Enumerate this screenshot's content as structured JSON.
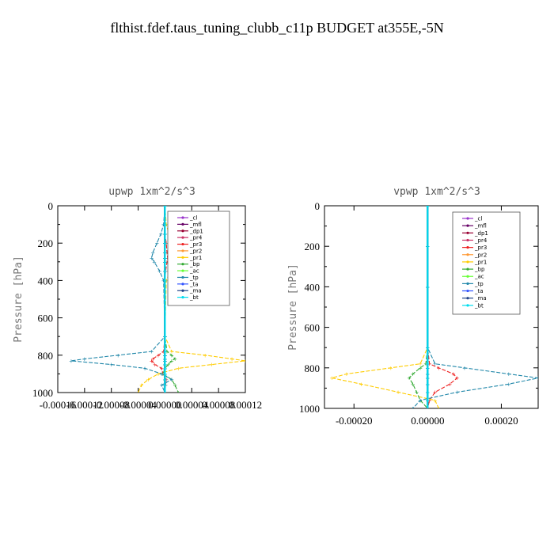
{
  "suptitle": "flthist.fdef.taus_tuning_clubb_c11p  BUDGET at355E,-5N",
  "chart_data": [
    {
      "type": "line",
      "title": "upwp   1xm^2/s^3",
      "ylabel": "Pressure [hPa]",
      "xlim": [
        -0.00016,
        0.00012
      ],
      "ylim": [
        1000,
        0
      ],
      "x_ticks": [
        "-0.00016",
        "-0.00012",
        "-0.00008",
        "-0.00004",
        "0.00000",
        "0.00004",
        "0.00008",
        "0.00012"
      ],
      "y_ticks": [
        "0",
        "200",
        "400",
        "600",
        "800",
        "1000"
      ],
      "legend_position": "top-right",
      "pressure": [
        0,
        100,
        150,
        200,
        250,
        280,
        300,
        350,
        400,
        700,
        780,
        800,
        820,
        830,
        850,
        870,
        900,
        930,
        960,
        1000
      ],
      "series": [
        {
          "name": "_cl",
          "color": "#9933cc",
          "x": [
            0,
            0,
            0,
            0,
            0,
            0,
            0,
            0,
            0,
            0,
            0,
            0,
            0,
            0,
            0,
            0,
            0,
            0,
            0,
            0
          ]
        },
        {
          "name": "_mfl",
          "color": "#660066",
          "x": [
            0,
            0,
            0,
            0,
            0,
            0,
            0,
            0,
            0,
            0,
            0,
            0,
            0,
            0,
            0,
            0,
            0,
            0,
            0,
            0
          ]
        },
        {
          "name": "_dp1",
          "color": "#990033",
          "x": [
            0,
            0,
            0,
            0,
            0,
            0,
            0,
            0,
            0,
            0,
            0,
            0,
            0,
            0,
            0,
            0,
            0,
            0,
            0,
            0
          ]
        },
        {
          "name": "_pr4",
          "color": "#cc3366",
          "x": [
            0,
            0,
            0,
            0,
            0,
            0,
            0,
            0,
            0,
            0,
            0,
            0,
            0,
            0,
            0,
            0,
            0,
            0,
            0,
            0
          ]
        },
        {
          "name": "_pr3",
          "color": "#ee2222",
          "x": [
            0,
            0,
            0,
            2e-06,
            3e-06,
            4e-06,
            3e-06,
            1e-06,
            0,
            0,
            -2e-06,
            -1e-05,
            -1.8e-05,
            -2e-05,
            -1.5e-05,
            -5e-06,
            -3e-06,
            2e-06,
            1e-06,
            0
          ]
        },
        {
          "name": "_pr2",
          "color": "#ff9933",
          "x": [
            0,
            0,
            0,
            0,
            0,
            0,
            0,
            0,
            0,
            0,
            0,
            0,
            0,
            0,
            0,
            0,
            0,
            0,
            0,
            0
          ]
        },
        {
          "name": "_pr1",
          "color": "#ffcc00",
          "x": [
            0,
            2e-06,
            6e-06,
            1.2e-05,
            1.6e-05,
            1.8e-05,
            1.6e-05,
            8e-06,
            2e-06,
            0,
            1e-05,
            6e-05,
            0.0001,
            0.00012,
            7e-05,
            2e-05,
            -1e-05,
            -2.5e-05,
            -3.5e-05,
            -4e-05
          ]
        },
        {
          "name": "_bp",
          "color": "#33aa33",
          "x": [
            0,
            0,
            0,
            0,
            0,
            0,
            0,
            0,
            0,
            0,
            3e-06,
            1e-05,
            1.5e-05,
            1e-05,
            5e-06,
            0,
            -3e-06,
            1e-05,
            1.5e-05,
            2e-05
          ]
        },
        {
          "name": "_ac",
          "color": "#66ff33",
          "x": [
            0,
            0,
            0,
            0,
            0,
            0,
            0,
            0,
            0,
            0,
            0,
            0,
            0,
            0,
            0,
            0,
            0,
            0,
            0,
            0
          ]
        },
        {
          "name": "_tp",
          "color": "#2288aa",
          "x": [
            0,
            -2e-06,
            -6e-06,
            -1.2e-05,
            -1.8e-05,
            -2e-05,
            -1.6e-05,
            -8e-06,
            -2e-06,
            0,
            -2e-05,
            -7e-05,
            -0.00012,
            -0.00014,
            -8e-05,
            -3e-05,
            -5e-06,
            1e-05,
            -5e-06,
            0
          ]
        },
        {
          "name": "_ta",
          "color": "#3355ff",
          "x": [
            0,
            0,
            0,
            0,
            0,
            0,
            0,
            0,
            0,
            0,
            0,
            0,
            0,
            0,
            0,
            0,
            0,
            0,
            0,
            0
          ]
        },
        {
          "name": "_ma",
          "color": "#224488",
          "x": [
            0,
            0,
            0,
            0,
            0,
            0,
            0,
            0,
            0,
            0,
            0,
            0,
            0,
            0,
            0,
            0,
            0,
            0,
            0,
            0
          ]
        },
        {
          "name": "_bt",
          "color": "#00ddee",
          "x": [
            0,
            0,
            0,
            0,
            0,
            0,
            0,
            0,
            0,
            0,
            0,
            0,
            0,
            0,
            0,
            0,
            0,
            0,
            0,
            0
          ]
        }
      ]
    },
    {
      "type": "line",
      "title": "vpwp   1xm^2/s^3",
      "ylabel": "Pressure [hPa]",
      "xlim": [
        -0.00028,
        0.0003
      ],
      "ylim": [
        1000,
        0
      ],
      "x_ticks": [
        "-0.00020",
        "0.00000",
        "0.00020"
      ],
      "x_tick_values": [
        -0.0002,
        0,
        0.0002
      ],
      "y_ticks": [
        "0",
        "200",
        "400",
        "600",
        "800",
        "1000"
      ],
      "legend_position": "top-right",
      "pressure": [
        0,
        200,
        400,
        700,
        780,
        800,
        830,
        850,
        880,
        920,
        960,
        1000
      ],
      "series": [
        {
          "name": "_cl",
          "color": "#9933cc",
          "x": [
            0,
            0,
            0,
            0,
            0,
            0,
            0,
            0,
            0,
            0,
            0,
            0
          ]
        },
        {
          "name": "_mfl",
          "color": "#660066",
          "x": [
            0,
            0,
            0,
            0,
            0,
            0,
            0,
            0,
            0,
            0,
            0,
            0
          ]
        },
        {
          "name": "_dp1",
          "color": "#990033",
          "x": [
            0,
            0,
            0,
            0,
            0,
            0,
            0,
            0,
            0,
            0,
            0,
            0
          ]
        },
        {
          "name": "_pr4",
          "color": "#cc3366",
          "x": [
            0,
            0,
            0,
            0,
            0,
            0,
            0,
            0,
            0,
            0,
            0,
            0
          ]
        },
        {
          "name": "_pr3",
          "color": "#ee2222",
          "x": [
            0,
            0,
            0,
            0,
            5e-06,
            3e-05,
            7e-05,
            8e-05,
            6e-05,
            2e-05,
            5e-06,
            0
          ]
        },
        {
          "name": "_pr2",
          "color": "#ff9933",
          "x": [
            0,
            0,
            0,
            0,
            0,
            0,
            0,
            0,
            0,
            0,
            0,
            0
          ]
        },
        {
          "name": "_pr1",
          "color": "#ffcc00",
          "x": [
            0,
            0,
            0,
            0,
            -2e-05,
            -0.0001,
            -0.00022,
            -0.00026,
            -0.00018,
            -8e-05,
            2e-05,
            3e-05
          ]
        },
        {
          "name": "_bp",
          "color": "#33aa33",
          "x": [
            0,
            0,
            0,
            0,
            -5e-06,
            -2e-05,
            -4e-05,
            -5e-05,
            -4e-05,
            -3e-05,
            -2e-05,
            0
          ]
        },
        {
          "name": "_ac",
          "color": "#66ff33",
          "x": [
            0,
            0,
            0,
            0,
            0,
            0,
            0,
            0,
            0,
            0,
            0,
            0
          ]
        },
        {
          "name": "_tp",
          "color": "#2288aa",
          "x": [
            0,
            0,
            0,
            0,
            2e-05,
            0.0001,
            0.00022,
            0.0003,
            0.00022,
            8e-05,
            -2e-05,
            -4e-05
          ]
        },
        {
          "name": "_ta",
          "color": "#3355ff",
          "x": [
            0,
            0,
            0,
            0,
            0,
            0,
            0,
            0,
            0,
            0,
            0,
            0
          ]
        },
        {
          "name": "_ma",
          "color": "#224488",
          "x": [
            0,
            0,
            0,
            0,
            0,
            0,
            0,
            0,
            0,
            0,
            0,
            0
          ]
        },
        {
          "name": "_bt",
          "color": "#00ddee",
          "x": [
            0,
            0,
            0,
            0,
            0,
            0,
            0,
            0,
            0,
            0,
            0,
            0
          ]
        }
      ]
    }
  ]
}
